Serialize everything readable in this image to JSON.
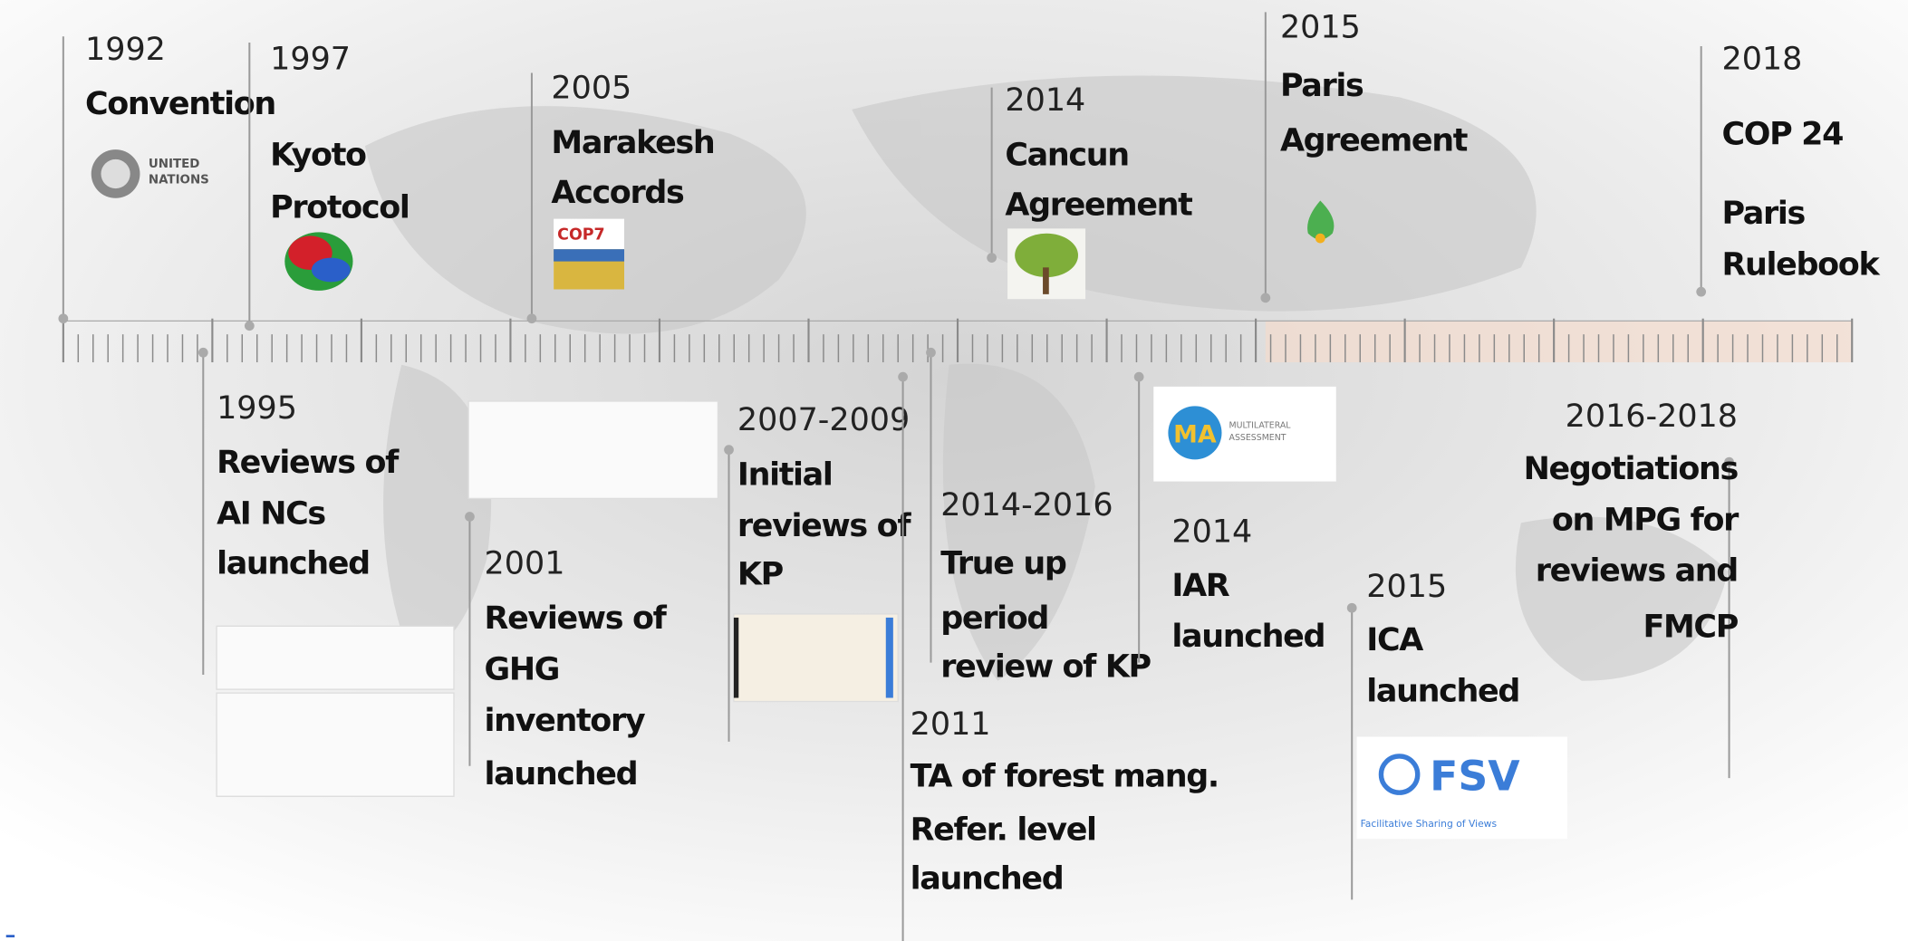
{
  "timeline": {
    "top_events": [
      {
        "year": "1992",
        "lines": [
          "Convention"
        ]
      },
      {
        "year": "1997",
        "lines": [
          "Kyoto",
          "Protocol"
        ]
      },
      {
        "year": "2005",
        "lines": [
          "Marakesh",
          "Accords"
        ]
      },
      {
        "year": "2014",
        "lines": [
          "Cancun",
          "Agreement"
        ]
      },
      {
        "year": "2015",
        "lines": [
          "Paris",
          "Agreement"
        ]
      },
      {
        "year": "2018",
        "lines": [
          "COP 24",
          "Paris",
          "Rulebook"
        ]
      }
    ],
    "bottom_events": [
      {
        "year": "1995",
        "lines": [
          "Reviews of",
          "AI NCs",
          "launched"
        ]
      },
      {
        "year": "2001",
        "lines": [
          "Reviews of",
          "GHG",
          "inventory",
          "launched"
        ]
      },
      {
        "year": "2007-2009",
        "lines": [
          "Initial",
          "reviews  of",
          "KP"
        ]
      },
      {
        "year": "2011",
        "lines": [
          "TA of forest mang.",
          "Refer. level",
          "launched"
        ]
      },
      {
        "year": "2014-2016",
        "lines": [
          "True up",
          "period",
          "review of KP"
        ]
      },
      {
        "year": "2014",
        "lines": [
          "IAR",
          "launched"
        ]
      },
      {
        "year": "2015",
        "lines": [
          "ICA",
          "launched"
        ]
      },
      {
        "year": "2016-2018",
        "lines": [
          "Negotiations",
          "on MPG for",
          "reviews and",
          "FMCP"
        ]
      }
    ],
    "logos": {
      "un": [
        "UNITED",
        "NATIONS"
      ],
      "cop": "COP7",
      "ma": "MA",
      "ma_sub": [
        "MULTILATERAL",
        "ASSESSMENT"
      ],
      "fsv": "FSV",
      "fsv_sub": "Facilitative Sharing of Views"
    }
  }
}
